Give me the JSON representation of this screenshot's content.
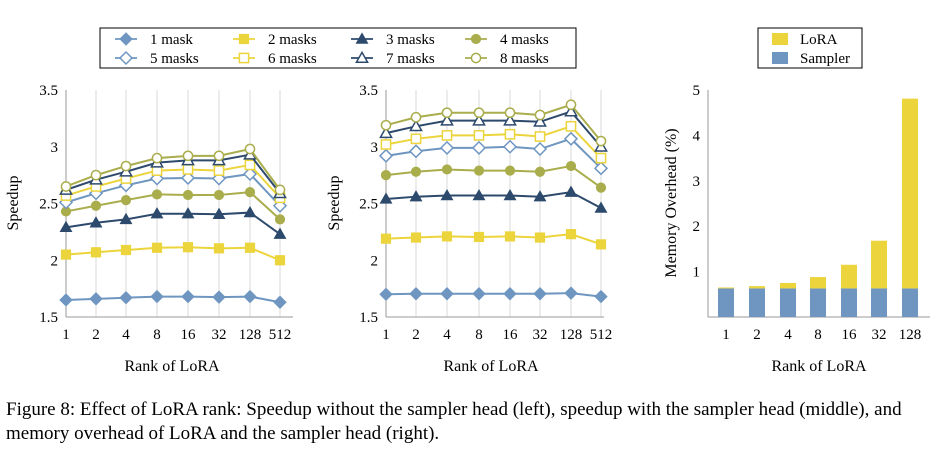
{
  "chart_data": [
    {
      "type": "line",
      "panel": "left",
      "title": "",
      "xlabel": "Rank of LoRA",
      "ylabel": "Speedup",
      "ylim": [
        1.5,
        3.5
      ],
      "yticks": [
        1.5,
        2,
        2.5,
        3,
        3.5
      ],
      "ytick_labels": [
        "1.5",
        "2",
        "2.5",
        "3",
        "3.5"
      ],
      "categories": [
        "1",
        "2",
        "4",
        "8",
        "16",
        "32",
        "128",
        "512"
      ],
      "grid": "vertical",
      "series": [
        {
          "name": "1 mask",
          "values": [
            1.65,
            1.66,
            1.67,
            1.68,
            1.68,
            1.675,
            1.68,
            1.63
          ]
        },
        {
          "name": "2 masks",
          "values": [
            2.05,
            2.07,
            2.09,
            2.11,
            2.115,
            2.105,
            2.11,
            2.0
          ]
        },
        {
          "name": "3 masks",
          "values": [
            2.29,
            2.33,
            2.36,
            2.41,
            2.41,
            2.405,
            2.42,
            2.23
          ]
        },
        {
          "name": "4 masks",
          "values": [
            2.43,
            2.48,
            2.53,
            2.58,
            2.575,
            2.575,
            2.6,
            2.36
          ]
        },
        {
          "name": "5 masks",
          "values": [
            2.51,
            2.59,
            2.66,
            2.72,
            2.725,
            2.72,
            2.76,
            2.48
          ]
        },
        {
          "name": "6 masks",
          "values": [
            2.57,
            2.65,
            2.72,
            2.79,
            2.8,
            2.79,
            2.84,
            2.55
          ]
        },
        {
          "name": "7 masks",
          "values": [
            2.62,
            2.71,
            2.78,
            2.86,
            2.88,
            2.88,
            2.93,
            2.59
          ]
        },
        {
          "name": "8 masks",
          "values": [
            2.65,
            2.75,
            2.83,
            2.9,
            2.92,
            2.92,
            2.98,
            2.62
          ]
        }
      ]
    },
    {
      "type": "line",
      "panel": "middle",
      "title": "",
      "xlabel": "Rank of LoRA",
      "ylabel": "Speedup",
      "ylim": [
        1.5,
        3.5
      ],
      "yticks": [
        1.5,
        2,
        2.5,
        3,
        3.5
      ],
      "ytick_labels": [
        "1.5",
        "2",
        "2.5",
        "3",
        "3.5"
      ],
      "categories": [
        "1",
        "2",
        "4",
        "8",
        "16",
        "32",
        "128",
        "512"
      ],
      "grid": "vertical",
      "series": [
        {
          "name": "1 mask",
          "values": [
            1.7,
            1.705,
            1.705,
            1.705,
            1.705,
            1.705,
            1.71,
            1.68
          ]
        },
        {
          "name": "2 masks",
          "values": [
            2.19,
            2.2,
            2.21,
            2.205,
            2.21,
            2.2,
            2.23,
            2.14
          ]
        },
        {
          "name": "3 masks",
          "values": [
            2.54,
            2.56,
            2.57,
            2.57,
            2.57,
            2.56,
            2.6,
            2.46
          ]
        },
        {
          "name": "4 masks",
          "values": [
            2.75,
            2.78,
            2.8,
            2.79,
            2.79,
            2.78,
            2.83,
            2.64
          ]
        },
        {
          "name": "5 masks",
          "values": [
            2.92,
            2.96,
            2.99,
            2.99,
            3.0,
            2.98,
            3.07,
            2.81
          ]
        },
        {
          "name": "6 masks",
          "values": [
            3.02,
            3.07,
            3.1,
            3.1,
            3.11,
            3.09,
            3.18,
            2.9
          ]
        },
        {
          "name": "7 masks",
          "values": [
            3.12,
            3.18,
            3.23,
            3.23,
            3.23,
            3.22,
            3.31,
            3.0
          ]
        },
        {
          "name": "8 masks",
          "values": [
            3.19,
            3.26,
            3.3,
            3.3,
            3.3,
            3.28,
            3.37,
            3.05
          ]
        }
      ]
    },
    {
      "type": "bar",
      "stacked": true,
      "panel": "right",
      "title": "",
      "xlabel": "Rank of LoRA",
      "ylabel": "Memory Overhead (%)",
      "ylim": [
        0,
        5
      ],
      "yticks": [
        1,
        2,
        3,
        4,
        5
      ],
      "ytick_labels": [
        "1",
        "2",
        "3",
        "4",
        "5"
      ],
      "categories": [
        "1",
        "2",
        "4",
        "8",
        "16",
        "32",
        "128"
      ],
      "legend_position": "top",
      "series": [
        {
          "name": "Sampler",
          "color": "#6f96c0",
          "values": [
            0.63,
            0.63,
            0.63,
            0.63,
            0.63,
            0.63,
            0.63
          ]
        },
        {
          "name": "LoRA",
          "color": "#ecd43c",
          "values": [
            0.02,
            0.05,
            0.12,
            0.25,
            0.52,
            1.05,
            4.18
          ]
        }
      ]
    }
  ],
  "legend": {
    "position": "top",
    "entries": [
      {
        "name": "1 mask",
        "color": "#6f96c0",
        "marker": "diamond-filled"
      },
      {
        "name": "2 masks",
        "color": "#ecd43c",
        "marker": "square-filled"
      },
      {
        "name": "3 masks",
        "color": "#2d4a6d",
        "marker": "triangle-filled"
      },
      {
        "name": "4 masks",
        "color": "#a9ad4c",
        "marker": "circle-filled"
      },
      {
        "name": "5 masks",
        "color": "#6f96c0",
        "marker": "diamond-open"
      },
      {
        "name": "6 masks",
        "color": "#ecd43c",
        "marker": "square-open"
      },
      {
        "name": "7 masks",
        "color": "#2d4a6d",
        "marker": "triangle-open"
      },
      {
        "name": "8 masks",
        "color": "#a9ad4c",
        "marker": "circle-open"
      }
    ]
  },
  "caption": "Figure 8: Effect of LoRA rank: Speedup without the sampler head (left), speedup with the sampler head (middle), and memory overhead of LoRA and the sampler head (right)."
}
